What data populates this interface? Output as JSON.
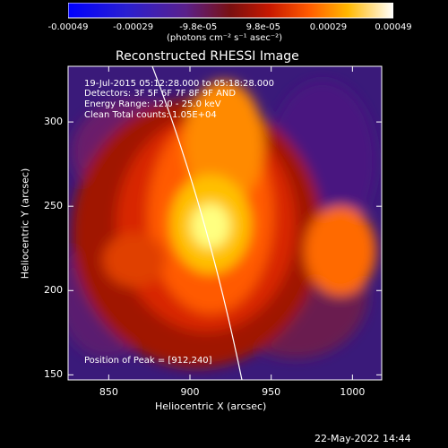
{
  "colorbar": {
    "tick_labels": [
      "-0.00049",
      "-0.00029",
      "-9.8e-05",
      "9.8e-05",
      "0.00029",
      "0.00049"
    ],
    "unit_label": "(photons cm⁻² s⁻¹ asec⁻²)"
  },
  "chart_data": {
    "type": "heatmap",
    "title": "Reconstructed RHESSI Image",
    "xlabel": "Heliocentric X (arcsec)",
    "ylabel": "Heliocentric Y (arcsec)",
    "xlim": [
      825,
      1018
    ],
    "ylim": [
      147,
      333
    ],
    "xticks": [
      850,
      900,
      950,
      1000
    ],
    "yticks": [
      150,
      200,
      250,
      300
    ],
    "color_range": [
      -0.00049,
      0.00049
    ],
    "peak": [
      912,
      240
    ],
    "annotations": [
      "19-Jul-2015 05:12:28.000 to 05:18:28.000",
      "Detectors: 3F 5F 6F 7F 8F 9F AND",
      "Energy Range: 12.0 - 25.0 keV",
      "Clean     Total counts: 1.05E+04"
    ],
    "peak_label": "Position of Peak = [912,240]"
  },
  "footer": {
    "timestamp": "22-May-2022 14:44"
  }
}
